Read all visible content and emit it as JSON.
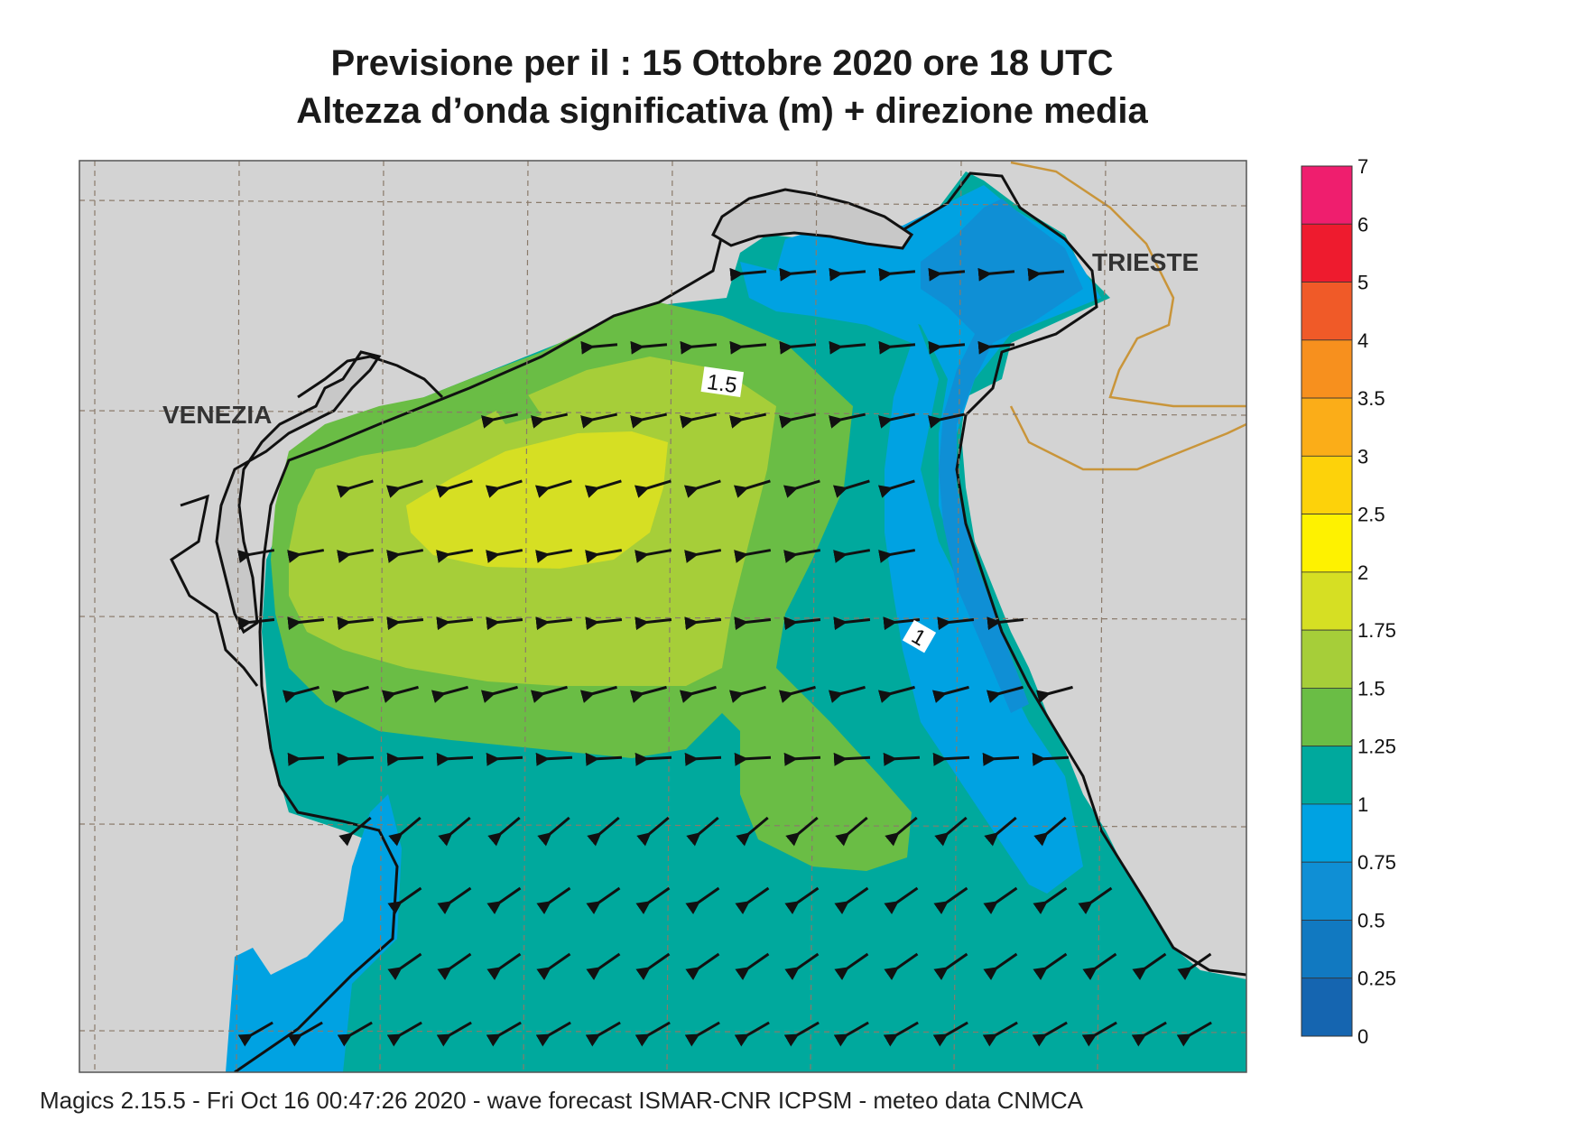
{
  "title": {
    "line1": "Previsione per il  :  15  Ottobre  2020   ore 18 UTC",
    "line2": "Altezza d’onda significativa (m) + direzione media"
  },
  "places": [
    {
      "name": "VENEZIA"
    },
    {
      "name": "TRIESTE"
    }
  ],
  "contour_labels": [
    "1.5",
    "1"
  ],
  "legend": {
    "levels": [
      {
        "label": "7",
        "color": "#ef1e6e"
      },
      {
        "label": "6",
        "color": "#ee1b2e"
      },
      {
        "label": "5",
        "color": "#f05a28"
      },
      {
        "label": "4",
        "color": "#f7901e"
      },
      {
        "label": "3.5",
        "color": "#fbad18"
      },
      {
        "label": "3",
        "color": "#fdd20a"
      },
      {
        "label": "2.5",
        "color": "#fef200"
      },
      {
        "label": "2",
        "color": "#d6df23"
      },
      {
        "label": "1.75",
        "color": "#a6ce39"
      },
      {
        "label": "1.5",
        "color": "#6abd45"
      },
      {
        "label": "1.25",
        "color": "#00a99d"
      },
      {
        "label": "1",
        "color": "#00a2e2"
      },
      {
        "label": "0.75",
        "color": "#0f8fd5"
      },
      {
        "label": "0.5",
        "color": "#1179c1"
      },
      {
        "label": "0.25",
        "color": "#1565b0"
      },
      {
        "label": "0",
        "color": ""
      }
    ]
  },
  "land_color": "#d3d3d3",
  "footer": "Magics 2.15.5 - Fri Oct 16 00:47:26 2020 - wave forecast  ISMAR-CNR  ICPSM - meteo data   CNMCA"
}
